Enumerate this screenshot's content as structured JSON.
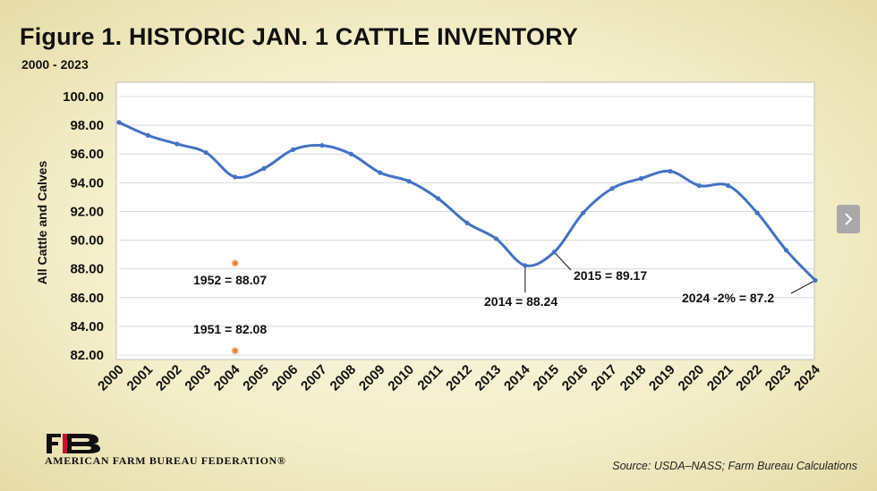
{
  "header": {
    "title": "Figure  1. HISTORIC JAN. 1 CATTLE INVENTORY",
    "subtitle": "2000 - 2023"
  },
  "footer": {
    "org_name": "AMERICAN FARM BUREAU FEDERATION®",
    "source": "Source: USDA–NASS; Farm Bureau Calculations"
  },
  "nav": {
    "next_icon": "chevron-right-icon"
  },
  "colors": {
    "line": "#4472c4",
    "reference_marker": "#e0823c",
    "next_button": "#a9a9a9"
  },
  "chart_data": {
    "type": "line",
    "title": "",
    "xlabel": "",
    "ylabel": "All Cattle and Calves",
    "ylim": [
      82.0,
      100.0
    ],
    "y_ticks": [
      "82.00",
      "84.00",
      "86.00",
      "88.00",
      "90.00",
      "92.00",
      "94.00",
      "96.00",
      "98.00",
      "100.00"
    ],
    "grid": "horizontal",
    "categories": [
      "2000",
      "2001",
      "2002",
      "2003",
      "2004",
      "2005",
      "2006",
      "2007",
      "2008",
      "2009",
      "2010",
      "2011",
      "2012",
      "2013",
      "2014",
      "2015",
      "2016",
      "2017",
      "2018",
      "2019",
      "2020",
      "2021",
      "2022",
      "2023",
      "2024"
    ],
    "series": [
      {
        "values": [
          98.2,
          97.3,
          96.7,
          96.1,
          94.4,
          95.0,
          96.3,
          96.6,
          96.0,
          94.7,
          94.1,
          92.9,
          91.2,
          90.1,
          88.24,
          89.17,
          91.9,
          93.6,
          94.3,
          94.8,
          93.8,
          93.8,
          91.9,
          89.3,
          87.2
        ]
      }
    ],
    "reference_points": [
      {
        "category": "2004",
        "value": 88.4,
        "label": "1952 = 88.07"
      },
      {
        "category": "2004",
        "value": 82.3,
        "label": "1951 = 82.08"
      }
    ],
    "annotations": [
      {
        "category": "2014",
        "label": "2014 = 88.24"
      },
      {
        "category": "2015",
        "label": "2015 = 89.17"
      },
      {
        "category": "2024",
        "label": "2024 -2% = 87.2"
      }
    ]
  }
}
